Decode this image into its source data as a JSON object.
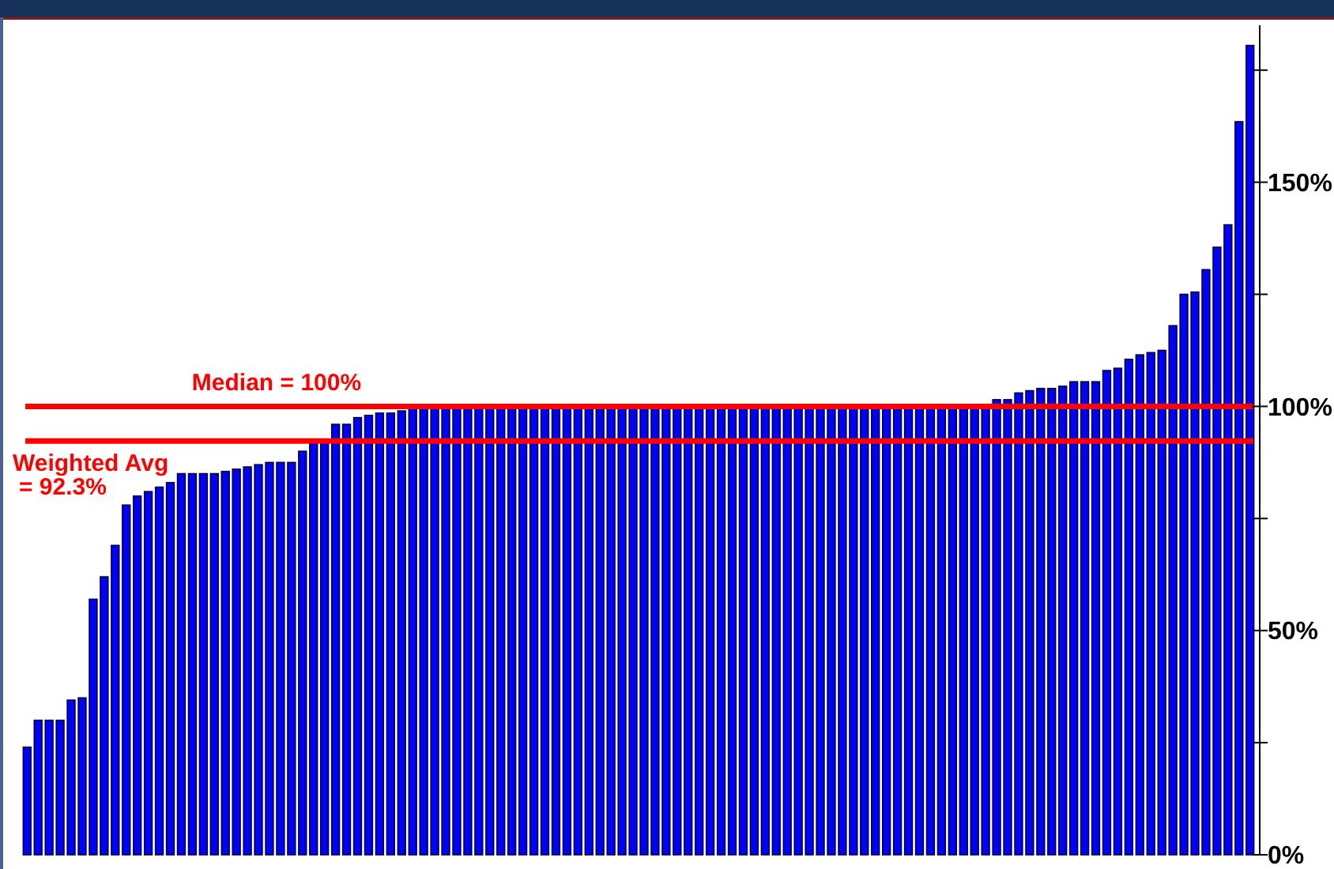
{
  "chart_data": {
    "type": "bar",
    "categories": [
      null,
      null,
      null,
      null,
      null,
      null,
      null,
      null,
      null,
      null,
      null,
      null,
      null,
      null,
      null,
      null,
      null,
      null,
      null,
      null,
      null,
      null,
      null,
      null,
      null,
      null,
      null,
      null,
      null,
      null,
      null,
      null,
      null,
      null,
      null,
      null,
      null,
      null,
      null,
      null,
      null,
      null,
      null,
      null,
      null,
      null,
      null,
      null,
      null,
      null,
      null,
      null,
      null,
      null,
      null,
      null,
      null,
      null,
      null,
      null,
      null,
      null,
      null,
      null,
      null,
      null,
      null,
      null,
      null,
      null,
      null,
      null,
      null,
      null,
      null,
      null,
      null,
      null,
      null,
      null,
      null,
      null,
      null,
      null,
      null,
      null,
      null,
      null,
      null,
      null,
      null,
      null,
      null,
      null,
      null,
      null,
      null,
      null,
      null,
      null,
      null,
      null,
      null,
      null,
      null,
      null,
      null,
      null,
      null,
      null,
      null,
      null
    ],
    "values": [
      24,
      30,
      30,
      30,
      34.5,
      35,
      57,
      62,
      69,
      78,
      80,
      81,
      82,
      83,
      85,
      85,
      85,
      85,
      85.5,
      86,
      86.5,
      87,
      87.5,
      87.5,
      87.5,
      90,
      92.5,
      92.5,
      96,
      96,
      97.5,
      98,
      98.5,
      98.5,
      99,
      100,
      100,
      100,
      100,
      100,
      100,
      100,
      100,
      100,
      100,
      100,
      100,
      100,
      100,
      100,
      100,
      100,
      100,
      100,
      100,
      100,
      100,
      100,
      100,
      100,
      100,
      100,
      100,
      100,
      100,
      100,
      100,
      100,
      100,
      100,
      100,
      100,
      100,
      100,
      100,
      100,
      100,
      100,
      100,
      100,
      100,
      100,
      100,
      100,
      100,
      100,
      100,
      100,
      101.5,
      101.5,
      103,
      103.5,
      104,
      104,
      104.5,
      105.5,
      105.5,
      105.5,
      108,
      108.5,
      110.5,
      111.5,
      112,
      112.5,
      118,
      125,
      125.5,
      130.5,
      135.5,
      140.5,
      163.5,
      180.5
    ],
    "color": "#0000ff",
    "ylim": [
      0,
      185
    ],
    "yticks": [
      {
        "value": 0,
        "label": "0%"
      },
      {
        "value": 25,
        "label": null
      },
      {
        "value": 50,
        "label": "50%"
      },
      {
        "value": 75,
        "label": null
      },
      {
        "value": 100,
        "label": "100%"
      },
      {
        "value": 125,
        "label": null
      },
      {
        "value": 150,
        "label": "150%"
      },
      {
        "value": 175,
        "label": null
      }
    ],
    "tick_labels": "y",
    "ref_lines": [
      {
        "axis": "y",
        "value": 100,
        "label": "Median = 100%",
        "color": "#ff0000"
      },
      {
        "axis": "y",
        "value": 92.3,
        "label": "Weighted Avg\n= 92.3%",
        "color": "#ff0000"
      }
    ],
    "grid": false
  }
}
